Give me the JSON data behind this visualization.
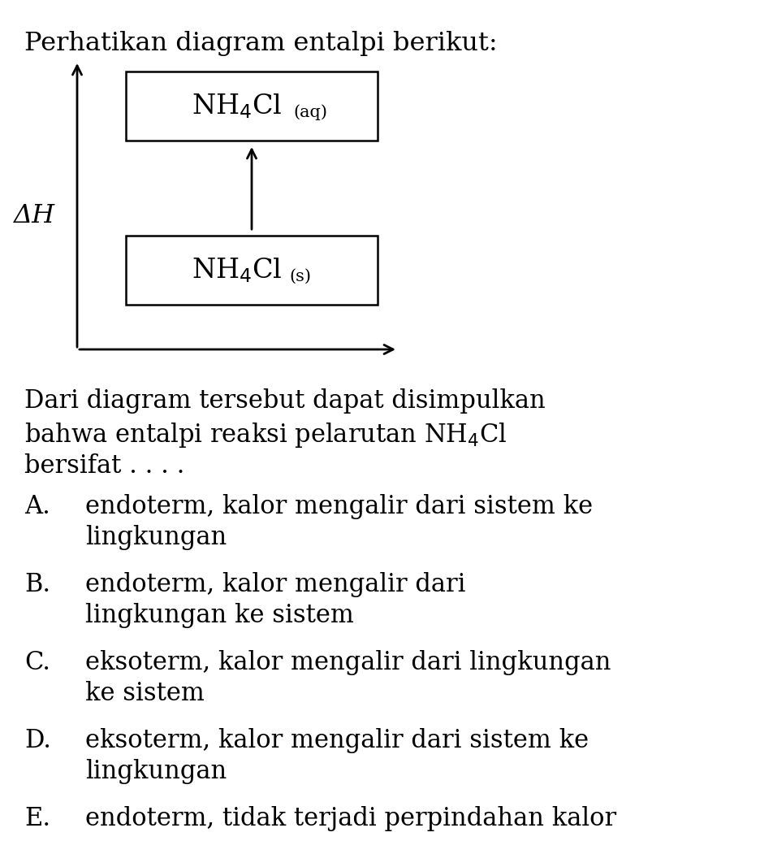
{
  "title": "Perhatikan diagram entalpi berikut:",
  "title_fontsize": 23,
  "background_color": "#ffffff",
  "text_color": "#000000",
  "delta_h_label": "ΔH",
  "question_line1": "Dari diagram tersebut dapat disimpulkan",
  "question_line2": "bahwa entalpi reaksi pelarutan NH$_4$Cl",
  "question_line3": "bersifat . . . .",
  "options": [
    {
      "label": "A.",
      "line1": "endoterm, kalor mengalir dari sistem ke",
      "line2": "lingkungan"
    },
    {
      "label": "B.",
      "line1": "endoterm, kalor mengalir dari",
      "line2": "lingkungan ke sistem"
    },
    {
      "label": "C.",
      "line1": "eksoterm, kalor mengalir dari lingkungan",
      "line2": "ke sistem"
    },
    {
      "label": "D.",
      "line1": "eksoterm, kalor mengalir dari sistem ke",
      "line2": "lingkungan"
    },
    {
      "label": "E.",
      "line1": "endoterm, tidak terjadi perpindahan kalor",
      "line2": ""
    }
  ],
  "text_fontsize": 22,
  "option_fontsize": 22
}
